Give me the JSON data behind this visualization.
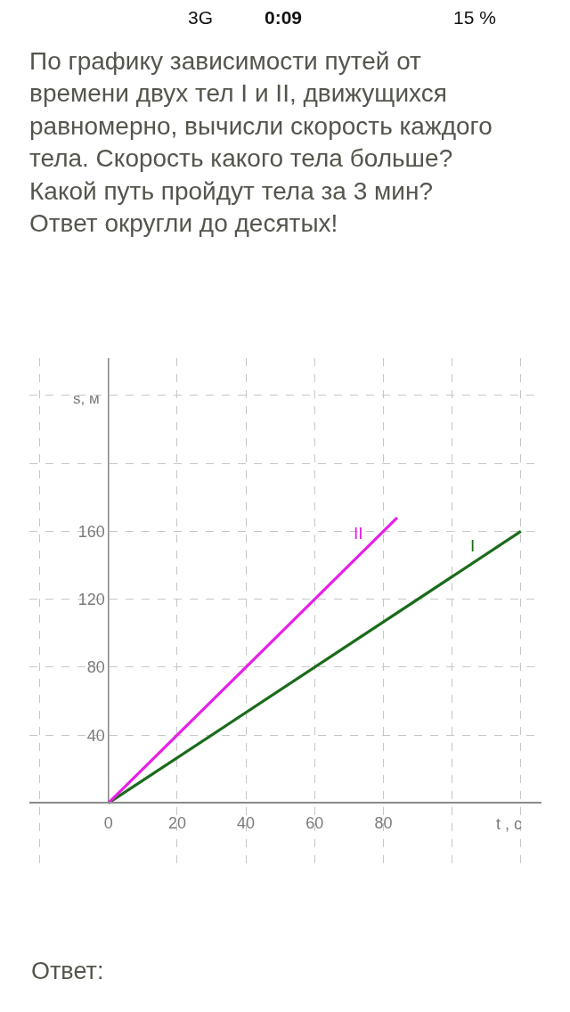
{
  "chart_data": {
    "type": "line",
    "title": "По графику зависимости путей от времени двух тел I и II, движущихся равномерно, вычисли скорость каждого тела. Скорость какого тела больше? Какой путь пройдут тела за 3 мин? Ответ округли до десятых!",
    "xlabel": "t , с",
    "ylabel": "s, м",
    "annotations": [
      "3G",
      "0:09",
      "15 %",
      "Ответ:"
    ],
    "series": [
      {
        "name": "I",
        "color": "#1a6b1a",
        "x": [
          0,
          120
        ],
        "values": [
          0,
          160
        ]
      },
      {
        "name": "II",
        "color": "#e81ee8",
        "x": [
          0,
          84
        ],
        "values": [
          0,
          168
        ]
      }
    ],
    "xlim": [
      -23,
      126
    ],
    "ylim": [
      -37,
      262
    ],
    "xticks": [
      {
        "value": -20,
        "label": null
      },
      0,
      20,
      40,
      60,
      80,
      {
        "value": 100,
        "label": null
      },
      {
        "value": 120,
        "label": null
      }
    ],
    "yticks": [
      40,
      80,
      120,
      160,
      {
        "value": 200,
        "label": null
      },
      {
        "value": 240,
        "label": null
      }
    ],
    "grid": true
  }
}
